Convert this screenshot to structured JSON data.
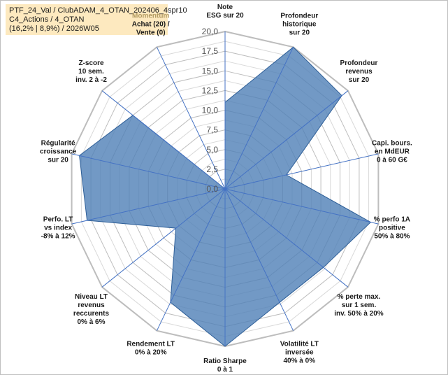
{
  "info": {
    "line1": "PTF_24_Val / ClubADAM_4_OTAN_202406_4spr10",
    "line2": "C4_Actions / 4_OTAN",
    "line3": "(16,2% | 8,9%) / 2026W05"
  },
  "colors": {
    "fill": "#4f7fb6",
    "stroke": "#2e5f98",
    "grid": "#c8c8c8",
    "spoke": "#4472c4",
    "highlight_label": "#b39b62"
  },
  "chart_data": {
    "type": "radar",
    "rlim": [
      0,
      20
    ],
    "tick_labels": [
      "0,0",
      "2,5",
      "5,0",
      "7,5",
      "10,0",
      "12,5",
      "15,0",
      "17,5",
      "20,0"
    ],
    "axes": [
      {
        "lines": [
          "Note",
          "ESG sur 20"
        ],
        "value": 11
      },
      {
        "lines": [
          "Profondeur",
          "historique",
          "sur 20"
        ],
        "value": 20
      },
      {
        "lines": [
          "Profondeur",
          "revenus",
          "sur 20"
        ],
        "value": 19
      },
      {
        "lines": [
          "Capi. bours.",
          "en MdEUR",
          "0 à 60 G€"
        ],
        "value": 8
      },
      {
        "lines": [
          "% perfo 1A",
          "positive",
          "50% à 80%"
        ],
        "value": 19
      },
      {
        "lines": [
          "% perte max.",
          "sur 1 sem.",
          "inv. 50% à 20%"
        ],
        "value": 16
      },
      {
        "lines": [
          "Volatilité LT",
          "inversée",
          "40% à 0%"
        ],
        "value": 16
      },
      {
        "lines": [
          "Ratio Sharpe",
          "0 à 1"
        ],
        "value": 20
      },
      {
        "lines": [
          "Rendement LT",
          "0% à 20%"
        ],
        "value": 16
      },
      {
        "lines": [
          "Niveau LT",
          "revenus",
          "reccurents",
          "0% à 6%"
        ],
        "value": 8
      },
      {
        "lines": [
          "Perfo. LT",
          "vs index",
          "-8% à 12%"
        ],
        "value": 18
      },
      {
        "lines": [
          "Régularité",
          "croissance",
          "sur 20"
        ],
        "value": 19
      },
      {
        "lines": [
          "Z-score",
          "10 sem.",
          "inv. 2 à -2"
        ],
        "value": 15
      },
      {
        "lines": [
          "Momentum",
          "Achat (20) /",
          "Vente (0)"
        ],
        "value": 0
      }
    ]
  }
}
